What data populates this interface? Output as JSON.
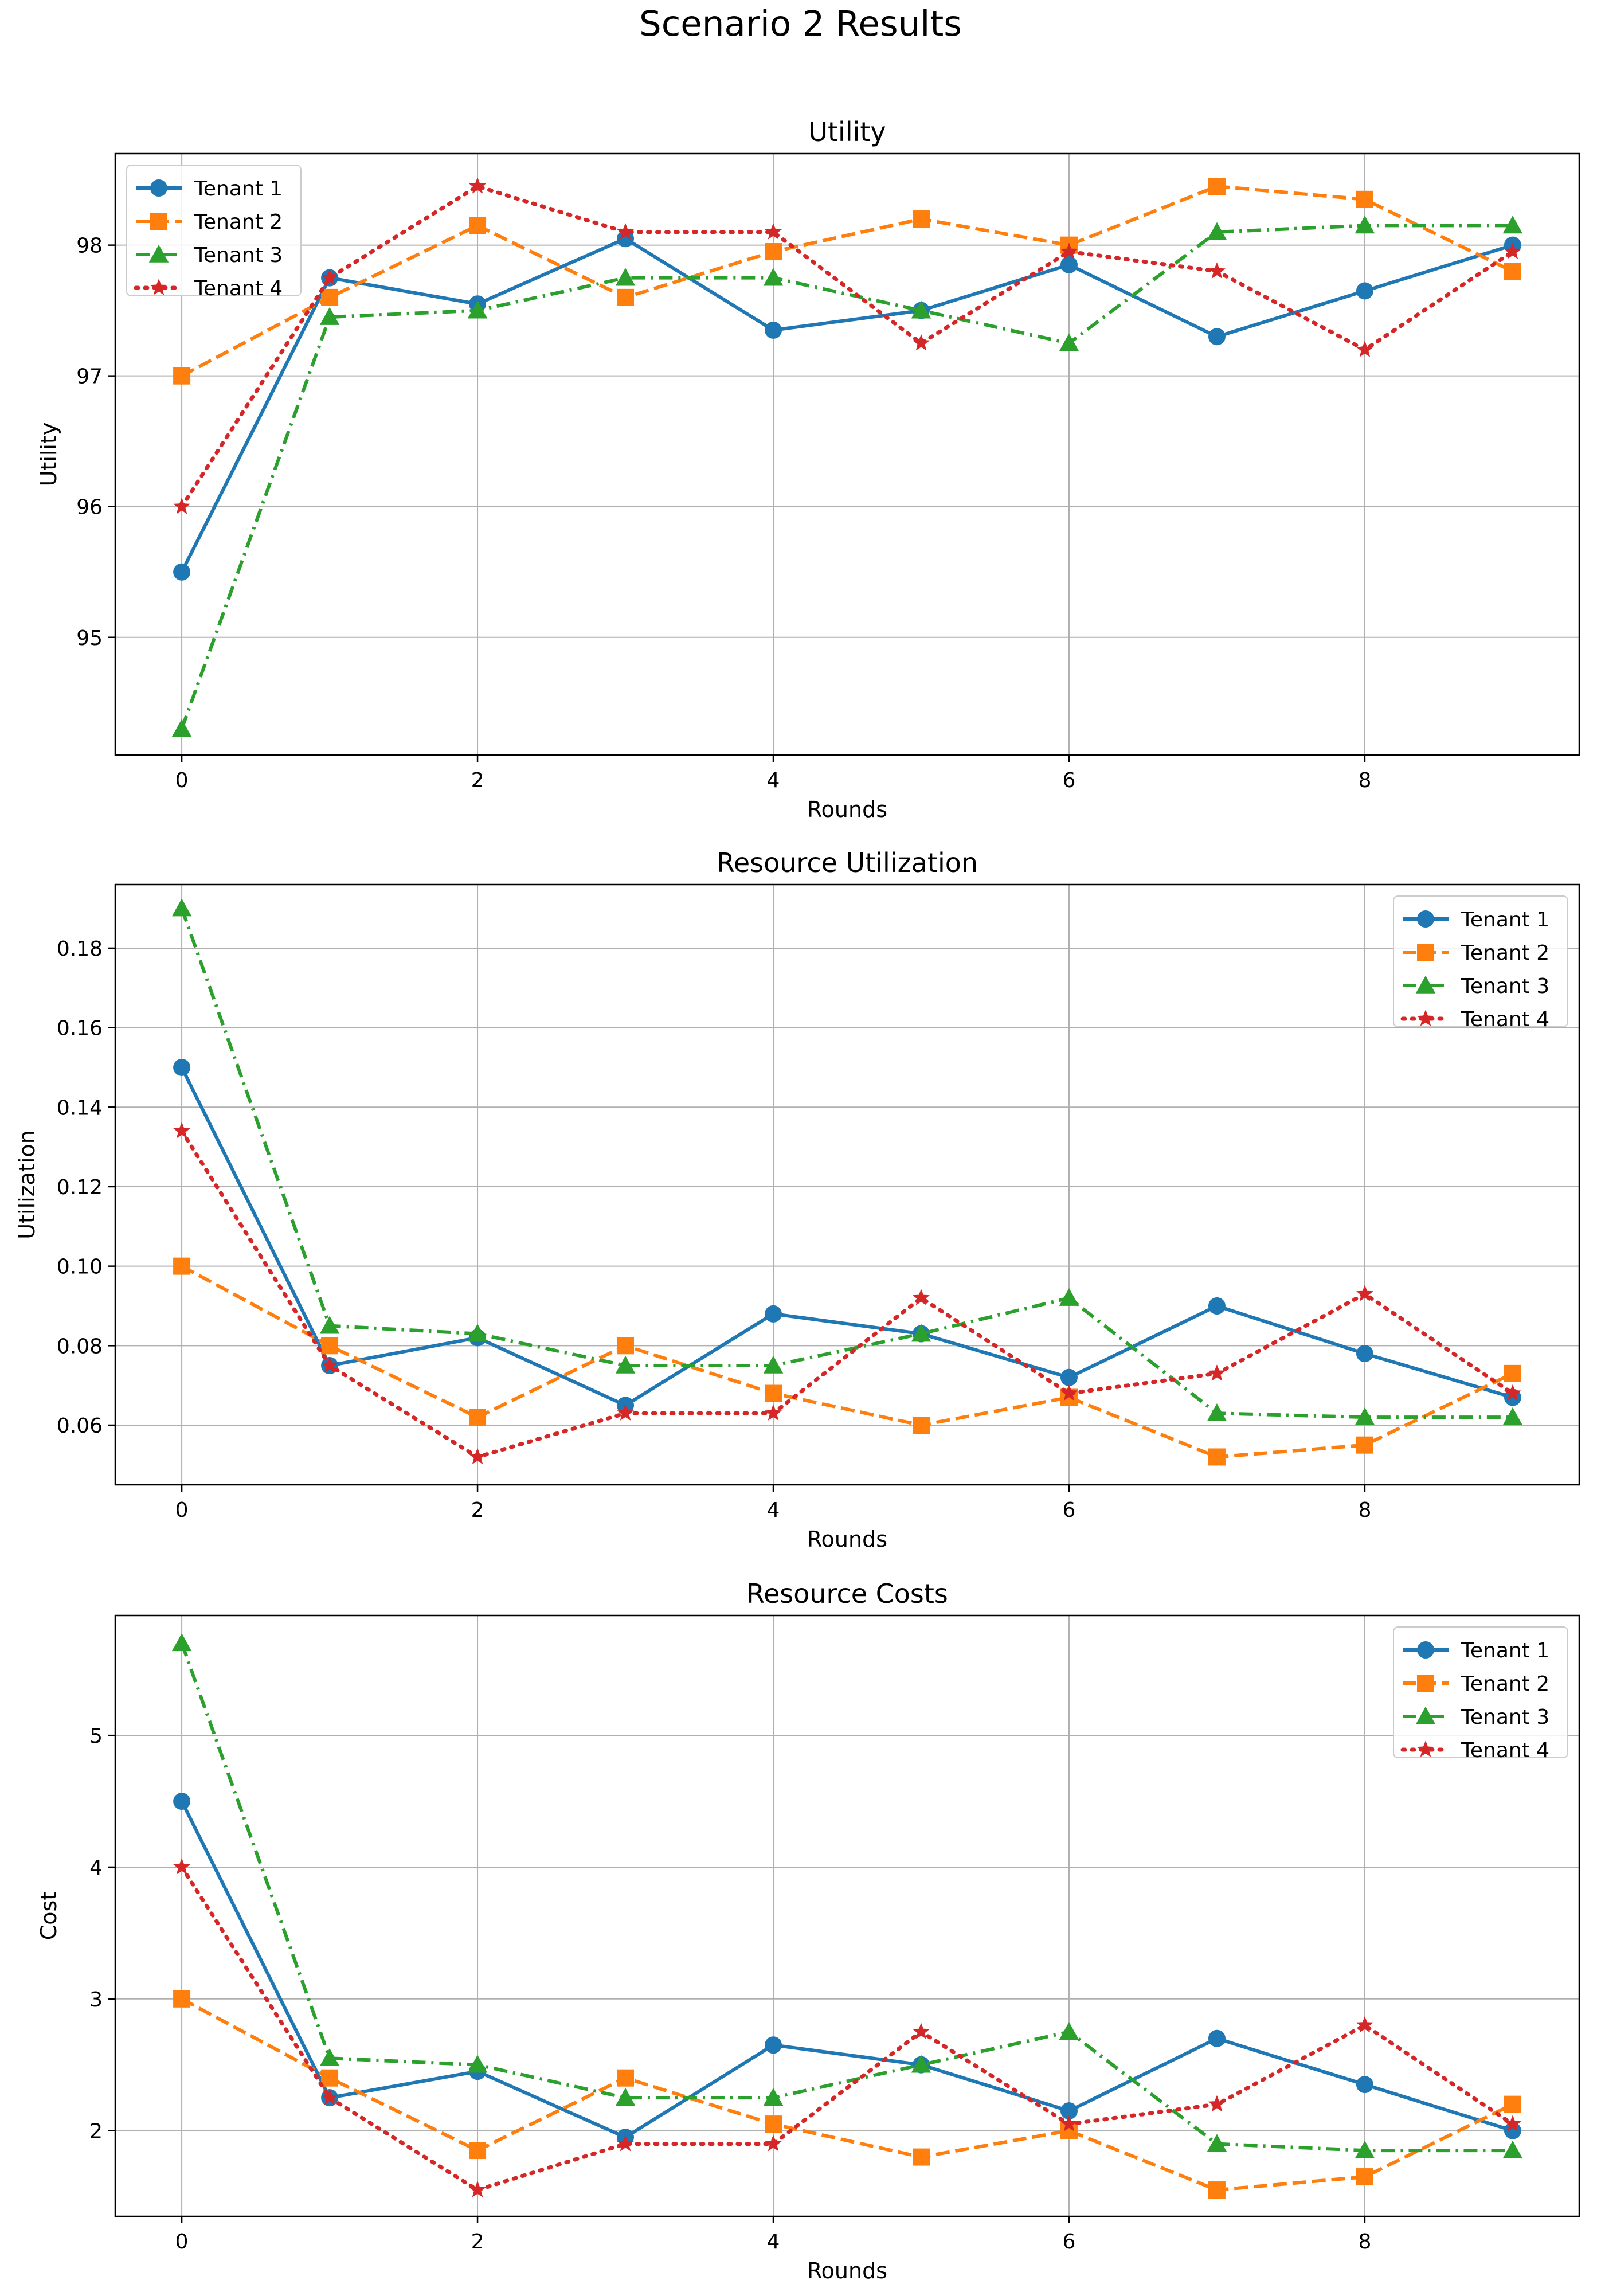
{
  "figure": {
    "title": "Scenario 2 Results"
  },
  "series_styles": [
    {
      "name": "Tenant 1",
      "color": "#1f77b4",
      "marker": "circle",
      "dash": "solid"
    },
    {
      "name": "Tenant 2",
      "color": "#ff7f0e",
      "marker": "square",
      "dash": "dashed"
    },
    {
      "name": "Tenant 3",
      "color": "#2ca02c",
      "marker": "triangle",
      "dash": "dashdot"
    },
    {
      "name": "Tenant 4",
      "color": "#d62728",
      "marker": "star",
      "dash": "dotted"
    }
  ],
  "chart_data": [
    {
      "type": "line",
      "title": "Utility",
      "xlabel": "Rounds",
      "ylabel": "Utility",
      "x": [
        0,
        1,
        2,
        3,
        4,
        5,
        6,
        7,
        8,
        9
      ],
      "xlim": [
        -0.45,
        9.45
      ],
      "ylim": [
        94.1,
        98.7
      ],
      "xticks": [
        0,
        2,
        4,
        6,
        8
      ],
      "yticks": [
        95,
        96,
        97,
        98
      ],
      "tick_labels_x": [
        "0",
        "2",
        "4",
        "6",
        "8"
      ],
      "tick_labels_y": [
        "95",
        "96",
        "97",
        "98"
      ],
      "grid": true,
      "legend": "top-left",
      "series": [
        {
          "name": "Tenant 1",
          "values": [
            95.5,
            97.75,
            97.55,
            98.05,
            97.35,
            97.5,
            97.85,
            97.3,
            97.65,
            98.0
          ]
        },
        {
          "name": "Tenant 2",
          "values": [
            97.0,
            97.6,
            98.15,
            97.6,
            97.95,
            98.2,
            98.0,
            98.45,
            98.35,
            97.8
          ]
        },
        {
          "name": "Tenant 3",
          "values": [
            94.3,
            97.45,
            97.5,
            97.75,
            97.75,
            97.5,
            97.25,
            98.1,
            98.15,
            98.15
          ]
        },
        {
          "name": "Tenant 4",
          "values": [
            96.0,
            97.75,
            98.45,
            98.1,
            98.1,
            97.25,
            97.95,
            97.8,
            97.2,
            97.95
          ]
        }
      ]
    },
    {
      "type": "line",
      "title": "Resource Utilization",
      "xlabel": "Rounds",
      "ylabel": "Utilization",
      "x": [
        0,
        1,
        2,
        3,
        4,
        5,
        6,
        7,
        8,
        9
      ],
      "xlim": [
        -0.45,
        9.45
      ],
      "ylim": [
        0.045,
        0.196
      ],
      "xticks": [
        0,
        2,
        4,
        6,
        8
      ],
      "yticks": [
        0.06,
        0.08,
        0.1,
        0.12,
        0.14,
        0.16,
        0.18
      ],
      "tick_labels_x": [
        "0",
        "2",
        "4",
        "6",
        "8"
      ],
      "tick_labels_y": [
        "0.06",
        "0.08",
        "0.10",
        "0.12",
        "0.14",
        "0.16",
        "0.18"
      ],
      "grid": true,
      "legend": "top-right",
      "series": [
        {
          "name": "Tenant 1",
          "values": [
            0.15,
            0.075,
            0.082,
            0.065,
            0.088,
            0.083,
            0.072,
            0.09,
            0.078,
            0.067
          ]
        },
        {
          "name": "Tenant 2",
          "values": [
            0.1,
            0.08,
            0.062,
            0.08,
            0.068,
            0.06,
            0.067,
            0.052,
            0.055,
            0.073
          ]
        },
        {
          "name": "Tenant 3",
          "values": [
            0.19,
            0.085,
            0.083,
            0.075,
            0.075,
            0.083,
            0.092,
            0.063,
            0.062,
            0.062
          ]
        },
        {
          "name": "Tenant 4",
          "values": [
            0.134,
            0.075,
            0.052,
            0.063,
            0.063,
            0.092,
            0.068,
            0.073,
            0.093,
            0.068
          ]
        }
      ]
    },
    {
      "type": "line",
      "title": "Resource Costs",
      "xlabel": "Rounds",
      "ylabel": "Cost",
      "x": [
        0,
        1,
        2,
        3,
        4,
        5,
        6,
        7,
        8,
        9
      ],
      "xlim": [
        -0.45,
        9.45
      ],
      "ylim": [
        1.35,
        5.91
      ],
      "xticks": [
        0,
        2,
        4,
        6,
        8
      ],
      "yticks": [
        2,
        3,
        4,
        5
      ],
      "tick_labels_x": [
        "0",
        "2",
        "4",
        "6",
        "8"
      ],
      "tick_labels_y": [
        "2",
        "3",
        "4",
        "5"
      ],
      "grid": true,
      "legend": "top-right",
      "series": [
        {
          "name": "Tenant 1",
          "values": [
            4.5,
            2.25,
            2.45,
            1.95,
            2.65,
            2.5,
            2.15,
            2.7,
            2.35,
            2.0
          ]
        },
        {
          "name": "Tenant 2",
          "values": [
            3.0,
            2.4,
            1.85,
            2.4,
            2.05,
            1.8,
            2.0,
            1.55,
            1.65,
            2.2
          ]
        },
        {
          "name": "Tenant 3",
          "values": [
            5.7,
            2.55,
            2.5,
            2.25,
            2.25,
            2.5,
            2.75,
            1.9,
            1.85,
            1.85
          ]
        },
        {
          "name": "Tenant 4",
          "values": [
            4.0,
            2.25,
            1.55,
            1.9,
            1.9,
            2.75,
            2.05,
            2.2,
            2.8,
            2.05
          ]
        }
      ]
    }
  ]
}
